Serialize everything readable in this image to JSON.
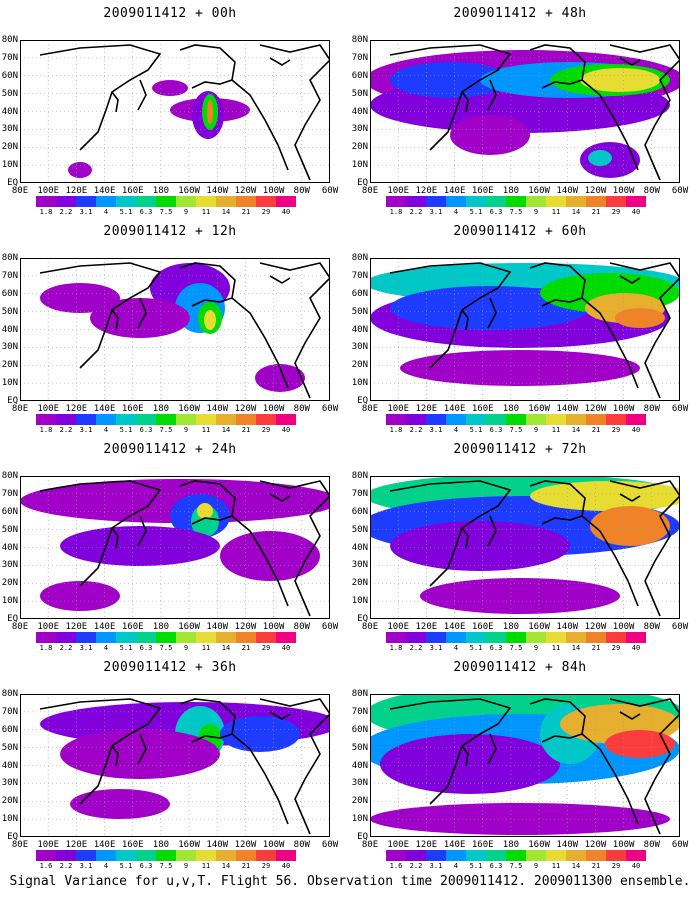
{
  "caption": "Signal Variance for u,v,T. Flight 56. Observation time 2009011412. 2009011300 ensemble.",
  "chart_data": [
    {
      "type": "heatmap",
      "title": "2009011412 + 00h",
      "xticks": [
        "80E",
        "100E",
        "120E",
        "140E",
        "160E",
        "180",
        "160W",
        "140W",
        "120W",
        "100W",
        "80W",
        "60W"
      ],
      "yticks": [
        "80N",
        "70N",
        "60N",
        "50N",
        "40N",
        "30N",
        "20N",
        "10N",
        "EQ"
      ],
      "colorbar_levels": [
        "1.8",
        "2.2",
        "3.1",
        "4",
        "5.1",
        "6.3",
        "7.5",
        "9",
        "11",
        "14",
        "21",
        "29",
        "40"
      ],
      "colorbar_colors": [
        "#a000c8",
        "#8200dc",
        "#1e3cff",
        "#0096ff",
        "#00c8c8",
        "#00d28c",
        "#00dc00",
        "#a0e632",
        "#e6dc32",
        "#e6af2d",
        "#f08228",
        "#fa3c3c",
        "#f00082"
      ]
    },
    {
      "type": "heatmap",
      "title": "2009011412 + 48h",
      "xticks": [
        "80E",
        "100E",
        "120E",
        "140E",
        "160E",
        "180",
        "160W",
        "140W",
        "120W",
        "100W",
        "80W",
        "60W"
      ],
      "yticks": [
        "80N",
        "70N",
        "60N",
        "50N",
        "40N",
        "30N",
        "20N",
        "10N",
        "EQ"
      ],
      "colorbar_levels": [
        "1.8",
        "2.2",
        "3.1",
        "4",
        "5.1",
        "6.3",
        "7.5",
        "9",
        "11",
        "14",
        "21",
        "29",
        "40"
      ],
      "colorbar_colors": [
        "#a000c8",
        "#8200dc",
        "#1e3cff",
        "#0096ff",
        "#00c8c8",
        "#00d28c",
        "#00dc00",
        "#a0e632",
        "#e6dc32",
        "#e6af2d",
        "#f08228",
        "#fa3c3c",
        "#f00082"
      ]
    },
    {
      "type": "heatmap",
      "title": "2009011412 + 12h",
      "xticks": [
        "80E",
        "100E",
        "120E",
        "140E",
        "160E",
        "180",
        "160W",
        "140W",
        "120W",
        "100W",
        "80W",
        "60W"
      ],
      "yticks": [
        "80N",
        "70N",
        "60N",
        "50N",
        "40N",
        "30N",
        "20N",
        "10N",
        "EQ"
      ],
      "colorbar_levels": [
        "1.8",
        "2.2",
        "3.1",
        "4",
        "5.1",
        "6.3",
        "7.5",
        "9",
        "11",
        "14",
        "21",
        "29",
        "40"
      ],
      "colorbar_colors": [
        "#a000c8",
        "#8200dc",
        "#1e3cff",
        "#0096ff",
        "#00c8c8",
        "#00d28c",
        "#00dc00",
        "#a0e632",
        "#e6dc32",
        "#e6af2d",
        "#f08228",
        "#fa3c3c",
        "#f00082"
      ]
    },
    {
      "type": "heatmap",
      "title": "2009011412 + 60h",
      "xticks": [
        "80E",
        "100E",
        "120E",
        "140E",
        "160E",
        "180",
        "160W",
        "140W",
        "120W",
        "100W",
        "80W",
        "60W"
      ],
      "yticks": [
        "80N",
        "70N",
        "60N",
        "50N",
        "40N",
        "30N",
        "20N",
        "10N",
        "EQ"
      ],
      "colorbar_levels": [
        "1.8",
        "2.2",
        "3.1",
        "4",
        "5.1",
        "6.3",
        "7.5",
        "9",
        "11",
        "14",
        "21",
        "29",
        "40"
      ],
      "colorbar_colors": [
        "#a000c8",
        "#8200dc",
        "#1e3cff",
        "#0096ff",
        "#00c8c8",
        "#00d28c",
        "#00dc00",
        "#a0e632",
        "#e6dc32",
        "#e6af2d",
        "#f08228",
        "#fa3c3c",
        "#f00082"
      ]
    },
    {
      "type": "heatmap",
      "title": "2009011412 + 24h",
      "xticks": [
        "80E",
        "100E",
        "120E",
        "140E",
        "160E",
        "180",
        "160W",
        "140W",
        "120W",
        "100W",
        "80W",
        "60W"
      ],
      "yticks": [
        "80N",
        "70N",
        "60N",
        "50N",
        "40N",
        "30N",
        "20N",
        "10N",
        "EQ"
      ],
      "colorbar_levels": [
        "1.8",
        "2.2",
        "3.1",
        "4",
        "5.1",
        "6.3",
        "7.5",
        "9",
        "11",
        "14",
        "21",
        "29",
        "40"
      ],
      "colorbar_colors": [
        "#a000c8",
        "#8200dc",
        "#1e3cff",
        "#0096ff",
        "#00c8c8",
        "#00d28c",
        "#00dc00",
        "#a0e632",
        "#e6dc32",
        "#e6af2d",
        "#f08228",
        "#fa3c3c",
        "#f00082"
      ]
    },
    {
      "type": "heatmap",
      "title": "2009011412 + 72h",
      "xticks": [
        "80E",
        "100E",
        "120E",
        "140E",
        "160E",
        "180",
        "160W",
        "140W",
        "120W",
        "100W",
        "80W",
        "60W"
      ],
      "yticks": [
        "80N",
        "70N",
        "60N",
        "50N",
        "40N",
        "30N",
        "20N",
        "10N",
        "EQ"
      ],
      "colorbar_levels": [
        "1.8",
        "2.2",
        "3.1",
        "4",
        "5.1",
        "6.3",
        "7.5",
        "9",
        "11",
        "14",
        "21",
        "29",
        "40"
      ],
      "colorbar_colors": [
        "#a000c8",
        "#8200dc",
        "#1e3cff",
        "#0096ff",
        "#00c8c8",
        "#00d28c",
        "#00dc00",
        "#a0e632",
        "#e6dc32",
        "#e6af2d",
        "#f08228",
        "#fa3c3c",
        "#f00082"
      ]
    },
    {
      "type": "heatmap",
      "title": "2009011412 + 36h",
      "xticks": [
        "80E",
        "100E",
        "120E",
        "140E",
        "160E",
        "180",
        "160W",
        "140W",
        "120W",
        "100W",
        "80W",
        "60W"
      ],
      "yticks": [
        "80N",
        "70N",
        "60N",
        "50N",
        "40N",
        "30N",
        "20N",
        "10N",
        "EQ"
      ],
      "colorbar_levels": [
        "1.6",
        "2.2",
        "3.1",
        "4",
        "5.1",
        "6.3",
        "7.5",
        "9",
        "11",
        "14",
        "21",
        "29",
        "40"
      ],
      "colorbar_colors": [
        "#a000c8",
        "#8200dc",
        "#1e3cff",
        "#0096ff",
        "#00c8c8",
        "#00d28c",
        "#00dc00",
        "#a0e632",
        "#e6dc32",
        "#e6af2d",
        "#f08228",
        "#fa3c3c",
        "#f00082"
      ]
    },
    {
      "type": "heatmap",
      "title": "2009011412 + 84h",
      "xticks": [
        "80E",
        "100E",
        "120E",
        "140E",
        "160E",
        "180",
        "160W",
        "140W",
        "120W",
        "100W",
        "80W",
        "60W"
      ],
      "yticks": [
        "80N",
        "70N",
        "60N",
        "50N",
        "40N",
        "30N",
        "20N",
        "10N",
        "EQ"
      ],
      "colorbar_levels": [
        "1.6",
        "2.2",
        "3.1",
        "4",
        "5.1",
        "6.3",
        "7.5",
        "9",
        "11",
        "14",
        "21",
        "29",
        "40"
      ],
      "colorbar_colors": [
        "#a000c8",
        "#8200dc",
        "#1e3cff",
        "#0096ff",
        "#00c8c8",
        "#00d28c",
        "#00dc00",
        "#a0e632",
        "#e6dc32",
        "#e6af2d",
        "#f08228",
        "#fa3c3c",
        "#f00082"
      ]
    }
  ]
}
